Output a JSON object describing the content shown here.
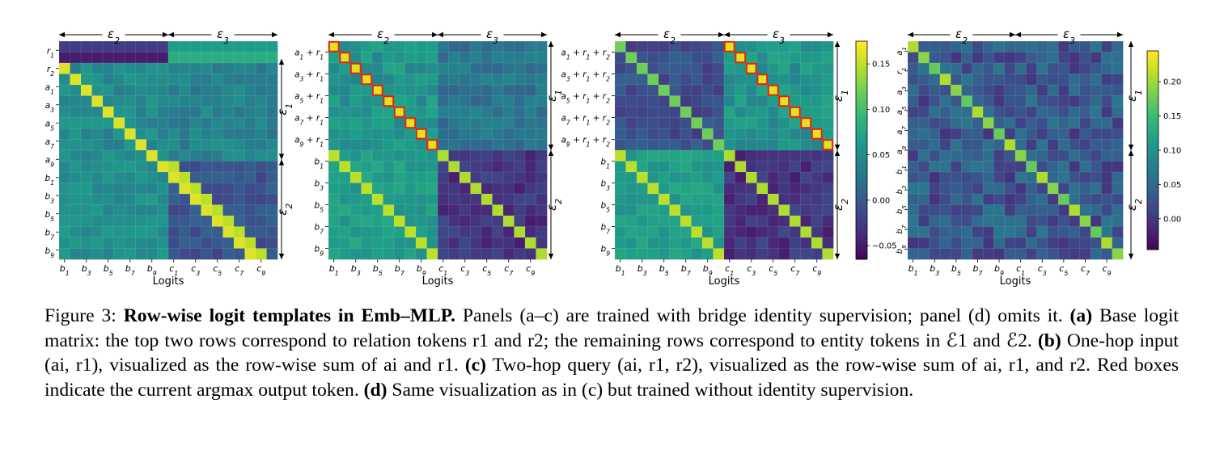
{
  "figure": {
    "panels": [
      {
        "id": "a",
        "type": "heatmap",
        "xlabel": "Logits",
        "x_ticks": [
          "b1",
          "b3",
          "b5",
          "b7",
          "b9",
          "c1",
          "c3",
          "c5",
          "c7",
          "c9"
        ],
        "y_ticks": [
          "r1",
          "r2",
          "a1",
          "a3",
          "a5",
          "a7",
          "a9",
          "b1",
          "b3",
          "b5",
          "b7",
          "b9"
        ],
        "top_brackets": [
          "ε2",
          "ε3"
        ],
        "right_brackets": [
          "ε1",
          "ε2"
        ],
        "red_boxes": false
      },
      {
        "id": "b",
        "type": "heatmap",
        "xlabel": "Logits",
        "x_ticks": [
          "b1",
          "b3",
          "b5",
          "b7",
          "b9",
          "c1",
          "c3",
          "c5",
          "c7",
          "c9"
        ],
        "y_ticks": [
          "a1 + r1",
          "a3 + r1",
          "a5 + r1",
          "a7 + r1",
          "a9 + r1",
          "b1",
          "b3",
          "b5",
          "b7",
          "b9"
        ],
        "top_brackets": [
          "ε2",
          "ε3"
        ],
        "right_brackets": [
          "ε1",
          "ε2"
        ],
        "red_boxes": true
      },
      {
        "id": "c",
        "type": "heatmap",
        "xlabel": "Logits",
        "x_ticks": [
          "b1",
          "b3",
          "b5",
          "b7",
          "b9",
          "c1",
          "c3",
          "c5",
          "c7",
          "c9"
        ],
        "y_ticks": [
          "a1 + r1 + r2",
          "a3 + r1 + r2",
          "a5 + r1 + r2",
          "a7 + r1 + r2",
          "a9 + r1 + r2",
          "b1",
          "b3",
          "b5",
          "b7",
          "b9"
        ],
        "top_brackets": [
          "ε2",
          "ε3"
        ],
        "right_brackets": [
          "ε1",
          "ε2"
        ],
        "red_boxes": true,
        "colorbar_ticks": [
          "0.15",
          "0.10",
          "0.05",
          "0.00",
          "−0.05"
        ]
      },
      {
        "id": "d",
        "type": "heatmap",
        "xlabel": "Logits",
        "x_ticks": [
          "b1",
          "b3",
          "b5",
          "b7",
          "b9",
          "c1",
          "c3",
          "c5",
          "c7",
          "c9"
        ],
        "y_ticks": [
          "a1",
          "r1",
          "a3",
          "a5",
          "a7",
          "a9",
          "b1",
          "b3",
          "b5",
          "b7",
          "b9"
        ],
        "top_brackets": [
          "ε2",
          "ε3"
        ],
        "right_brackets": [
          "ε1",
          "ε2"
        ],
        "red_boxes": false,
        "colorbar_ticks": [
          "0.20",
          "0.15",
          "0.10",
          "0.05",
          "0.00"
        ]
      }
    ]
  },
  "caption": {
    "figure_label": "Figure 3:",
    "title": "Row-wise logit templates in Emb–MLP.",
    "intro": "Panels (a–c) are trained with bridge identity supervision; panel (d) omits it.",
    "a_label": "(a)",
    "a_text": "Base logit matrix: the top two rows correspond to relation tokens r1 and r2; the remaining rows correspond to entity tokens in ℰ1 and ℰ2.",
    "b_label": "(b)",
    "b_text": "One-hop input (ai, r1), visualized as the row-wise sum of ai and r1.",
    "c_label": "(c)",
    "c_text": "Two-hop query (ai, r1, r2), visualized as the row-wise sum of ai, r1, and r2. Red boxes indicate the current argmax output token.",
    "d_label": "(d)",
    "d_text": "Same visualization as in (c) but trained without identity supervision."
  }
}
